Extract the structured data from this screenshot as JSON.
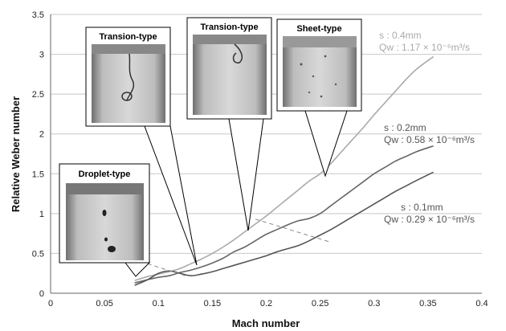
{
  "chart_data": {
    "type": "line",
    "xlabel": "Mach number",
    "ylabel": "Relative Weber number",
    "xlim": [
      0,
      0.4
    ],
    "ylim": [
      0,
      3.5
    ],
    "xticks": [
      "0",
      "0.05",
      "0.1",
      "0.15",
      "0.2",
      "0.25",
      "0.3",
      "0.35",
      "0.4"
    ],
    "yticks": [
      "0",
      "0.5",
      "1",
      "1.5",
      "2",
      "2.5",
      "3",
      "3.5"
    ],
    "grid": "horizontal",
    "series": [
      {
        "color": "#aaaaaa",
        "label_s": "s : 0.4mm",
        "label_q": "Qw : 1.17 × 10⁻⁶m³/s",
        "x": [
          0.078,
          0.09,
          0.1,
          0.11,
          0.12,
          0.13,
          0.14,
          0.15,
          0.16,
          0.17,
          0.18,
          0.19,
          0.2,
          0.21,
          0.22,
          0.23,
          0.24,
          0.25,
          0.26,
          0.27,
          0.28,
          0.29,
          0.3,
          0.31,
          0.32,
          0.33,
          0.34,
          0.355
        ],
        "y": [
          0.16,
          0.21,
          0.24,
          0.27,
          0.31,
          0.37,
          0.43,
          0.5,
          0.58,
          0.67,
          0.77,
          0.87,
          0.97,
          1.08,
          1.19,
          1.3,
          1.41,
          1.5,
          1.63,
          1.78,
          1.93,
          2.08,
          2.24,
          2.39,
          2.54,
          2.69,
          2.82,
          2.97
        ]
      },
      {
        "color": "#666666",
        "label_s": "s : 0.2mm",
        "label_q": "Qw : 0.58 × 10⁻⁶m³/s",
        "x": [
          0.078,
          0.09,
          0.1,
          0.11,
          0.12,
          0.13,
          0.14,
          0.15,
          0.16,
          0.17,
          0.18,
          0.19,
          0.2,
          0.21,
          0.22,
          0.23,
          0.24,
          0.25,
          0.26,
          0.27,
          0.28,
          0.29,
          0.3,
          0.31,
          0.32,
          0.33,
          0.34,
          0.355
        ],
        "y": [
          0.13,
          0.17,
          0.2,
          0.22,
          0.26,
          0.29,
          0.33,
          0.38,
          0.44,
          0.52,
          0.58,
          0.66,
          0.74,
          0.8,
          0.86,
          0.91,
          0.94,
          1.0,
          1.1,
          1.2,
          1.3,
          1.4,
          1.5,
          1.58,
          1.66,
          1.72,
          1.78,
          1.85
        ]
      },
      {
        "color": "#555555",
        "label_s": "s : 0.1mm",
        "label_q": "Qw : 0.29 × 10⁻⁶m³/s",
        "x": [
          0.078,
          0.09,
          0.1,
          0.11,
          0.12,
          0.13,
          0.14,
          0.15,
          0.16,
          0.17,
          0.18,
          0.19,
          0.2,
          0.21,
          0.22,
          0.23,
          0.24,
          0.25,
          0.26,
          0.27,
          0.28,
          0.29,
          0.3,
          0.31,
          0.32,
          0.33,
          0.34,
          0.355
        ],
        "y": [
          0.1,
          0.17,
          0.25,
          0.28,
          0.25,
          0.22,
          0.24,
          0.27,
          0.31,
          0.35,
          0.39,
          0.43,
          0.47,
          0.52,
          0.56,
          0.6,
          0.66,
          0.73,
          0.8,
          0.88,
          0.96,
          1.04,
          1.12,
          1.2,
          1.28,
          1.35,
          1.42,
          1.52
        ]
      }
    ],
    "transition_line": {
      "x": [
        0.09,
        0.125
      ],
      "y": [
        0.37,
        0.22
      ]
    },
    "transition_line_2": {
      "x": [
        0.19,
        0.26
      ],
      "y": [
        0.93,
        0.64
      ]
    },
    "photos": [
      {
        "title": "Transion-type",
        "points_to": [
          0.135,
          0.28
        ]
      },
      {
        "title": "Transion-type",
        "points_to": [
          0.18,
          0.8
        ]
      },
      {
        "title": "Sheet-type",
        "points_to": [
          0.253,
          1.48
        ]
      },
      {
        "title": "Droplet-type",
        "points_to": [
          0.082,
          0.19
        ]
      }
    ]
  }
}
